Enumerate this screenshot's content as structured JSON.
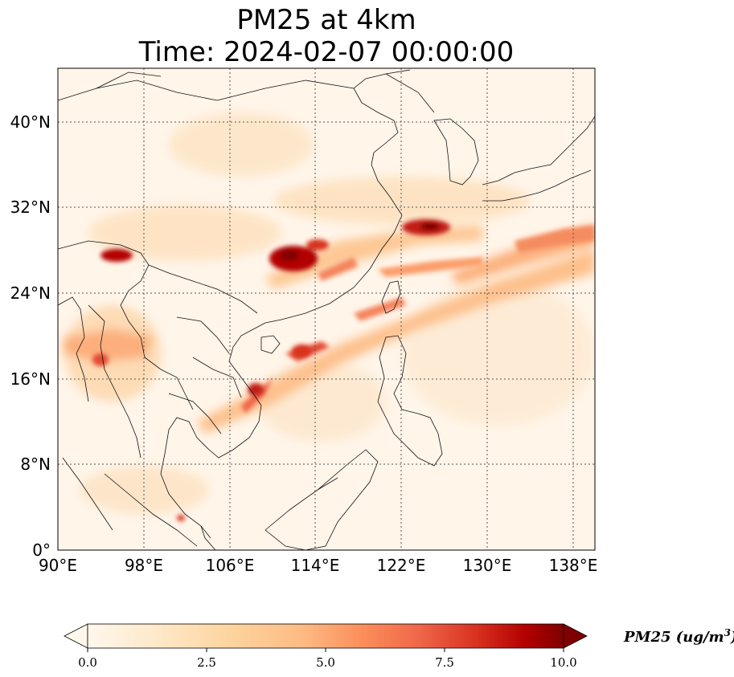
{
  "title": {
    "line1": "PM25 at 4km",
    "line2": "Time: 2024-02-07 00:00:00"
  },
  "map": {
    "variable": "PM25",
    "level": "4km",
    "time": "2024-02-07 00:00:00",
    "extent": {
      "lon_min": 90,
      "lon_max": 140,
      "lat_min": 0,
      "lat_max": 45
    },
    "lat_ticks": [
      "40°N",
      "32°N",
      "24°N",
      "16°N",
      "8°N",
      "0°"
    ],
    "lon_ticks": [
      "90°E",
      "98°E",
      "106°E",
      "114°E",
      "122°E",
      "130°E",
      "138°E"
    ],
    "gridlines": true,
    "colormap": "OrRd"
  },
  "colorbar": {
    "label": "PM25 (ug/m",
    "label_sup": "3",
    "label_close": ")",
    "ticks": [
      "0.0",
      "2.5",
      "5.0",
      "7.5",
      "10.0"
    ],
    "range": [
      0,
      10
    ],
    "extend": "both",
    "colors": [
      "#fff7ec",
      "#fee8c8",
      "#fdd49e",
      "#fdbb84",
      "#fc8d59",
      "#ef6548",
      "#d7301f",
      "#b30000",
      "#7f0000"
    ]
  }
}
